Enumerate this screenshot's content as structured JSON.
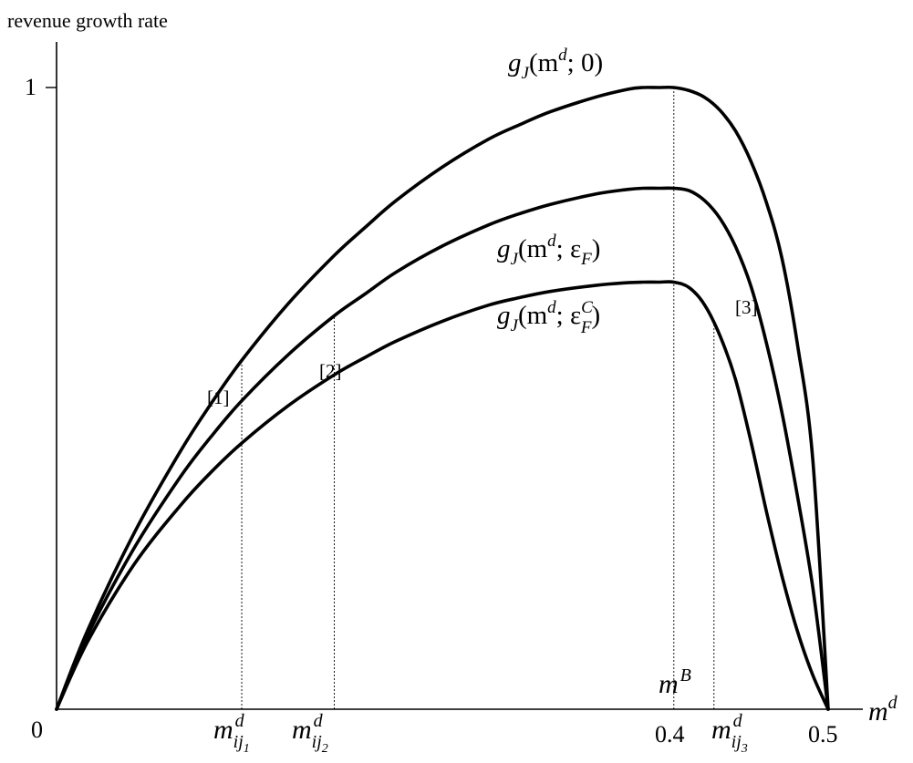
{
  "chart_data": {
    "type": "line",
    "ylabel": "revenue growth rate",
    "xlabel": "m",
    "xlabel_sup": "d",
    "xlim": [
      0,
      0.5
    ],
    "ylim": [
      0,
      1
    ],
    "x_ticks": [
      {
        "value": 0.4,
        "label": "0.4"
      },
      {
        "value": 0.5,
        "label": "0.5"
      }
    ],
    "y_ticks": [
      {
        "value": 1,
        "label": "1"
      }
    ],
    "origin_label": "0",
    "series": [
      {
        "name": "g_J(m^d; 0)",
        "x": [
          0,
          0.02,
          0.05,
          0.08,
          0.1,
          0.12,
          0.15,
          0.18,
          0.2,
          0.22,
          0.25,
          0.28,
          0.3,
          0.32,
          0.35,
          0.37,
          0.38,
          0.39,
          0.4,
          0.41,
          0.42,
          0.43,
          0.44,
          0.45,
          0.46,
          0.47,
          0.48,
          0.49,
          0.5
        ],
        "values": [
          0,
          0.126,
          0.282,
          0.414,
          0.491,
          0.561,
          0.652,
          0.73,
          0.775,
          0.818,
          0.872,
          0.917,
          0.94,
          0.961,
          0.985,
          0.997,
          1.0,
          1.0,
          1.0,
          0.995,
          0.984,
          0.963,
          0.93,
          0.881,
          0.815,
          0.726,
          0.588,
          0.402,
          0
        ]
      },
      {
        "name": "g_J(m^d; ε_F)",
        "x": [
          0,
          0.02,
          0.05,
          0.08,
          0.1,
          0.12,
          0.15,
          0.18,
          0.2,
          0.22,
          0.25,
          0.28,
          0.3,
          0.32,
          0.35,
          0.37,
          0.38,
          0.39,
          0.4,
          0.41,
          0.42,
          0.43,
          0.44,
          0.45,
          0.46,
          0.47,
          0.48,
          0.49,
          0.5
        ],
        "values": [
          0,
          0.118,
          0.258,
          0.373,
          0.438,
          0.496,
          0.57,
          0.633,
          0.668,
          0.703,
          0.745,
          0.779,
          0.797,
          0.812,
          0.829,
          0.836,
          0.838,
          0.838,
          0.838,
          0.834,
          0.818,
          0.789,
          0.744,
          0.68,
          0.589,
          0.478,
          0.344,
          0.196,
          0
        ]
      },
      {
        "name": "g_J(m^d; ε_F^C)",
        "x": [
          0,
          0.02,
          0.05,
          0.08,
          0.1,
          0.12,
          0.15,
          0.18,
          0.2,
          0.22,
          0.25,
          0.28,
          0.3,
          0.32,
          0.35,
          0.37,
          0.38,
          0.39,
          0.4,
          0.41,
          0.42,
          0.43,
          0.44,
          0.45,
          0.46,
          0.47,
          0.48,
          0.49,
          0.5
        ],
        "values": [
          0,
          0.108,
          0.232,
          0.327,
          0.381,
          0.428,
          0.488,
          0.538,
          0.566,
          0.592,
          0.624,
          0.65,
          0.662,
          0.672,
          0.682,
          0.686,
          0.687,
          0.687,
          0.687,
          0.678,
          0.65,
          0.6,
          0.53,
          0.43,
          0.318,
          0.215,
          0.126,
          0.055,
          0
        ]
      }
    ],
    "curve_labels": [
      {
        "base": "g",
        "sub": "J",
        "open": "(m",
        "sup": "d",
        "arg": "; 0)",
        "argsub": "",
        "argsup": "",
        "close": ""
      },
      {
        "base": "g",
        "sub": "J",
        "open": "(m",
        "sup": "d",
        "arg": "; ε",
        "argsub": "F",
        "argsup": "",
        "close": ")"
      },
      {
        "base": "g",
        "sub": "J",
        "open": "(m",
        "sup": "d",
        "arg": "; ε",
        "argsub": "F",
        "argsup": "C",
        "close": ")"
      }
    ],
    "guides": [
      {
        "x": 0.12,
        "top": 0.561,
        "point_label": "[1]",
        "axis_label": "m",
        "axis_sup": "d",
        "axis_sub": "ij",
        "axis_subsub": "1"
      },
      {
        "x": 0.18,
        "top": 0.633,
        "point_label": "[2]",
        "axis_label": "m",
        "axis_sup": "d",
        "axis_sub": "ij",
        "axis_subsub": "2"
      },
      {
        "x": 0.4,
        "top": 1.0,
        "point_label": "",
        "axis_label": "m",
        "axis_sup": "B",
        "axis_sub": "",
        "axis_subsub": ""
      },
      {
        "x": 0.426,
        "top": 0.62,
        "point_label": "[3]",
        "axis_label": "m",
        "axis_sup": "d",
        "axis_sub": "ij",
        "axis_subsub": "3"
      }
    ],
    "grid": false,
    "legend": "none"
  }
}
